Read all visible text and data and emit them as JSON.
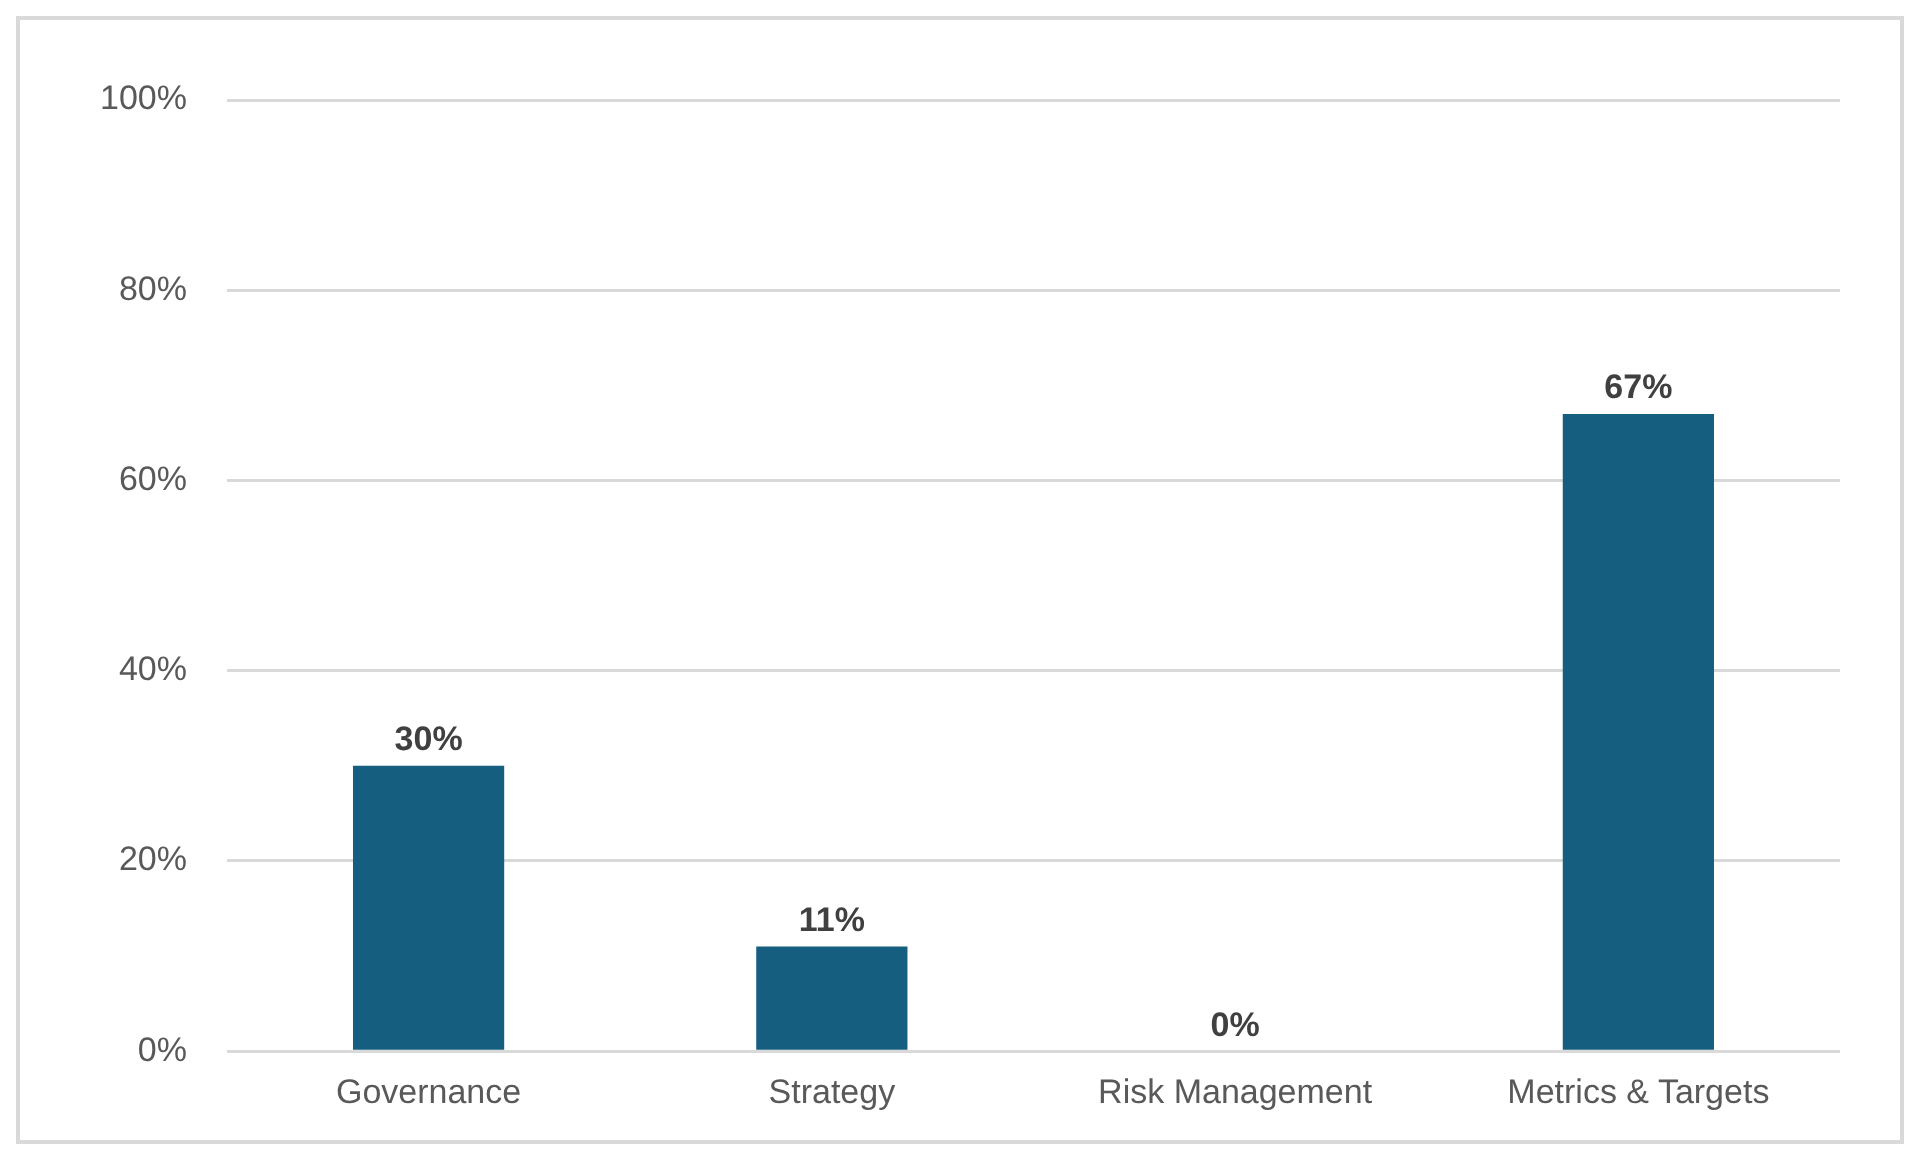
{
  "chart_data": {
    "type": "bar",
    "categories": [
      "Governance",
      "Strategy",
      "Risk Management",
      "Metrics & Targets"
    ],
    "values": [
      30,
      11,
      0,
      67
    ],
    "color": "#155e7f",
    "ylim": [
      0,
      100
    ],
    "yticks": [
      {
        "value": 0,
        "label": "0%"
      },
      {
        "value": 20,
        "label": "20%"
      },
      {
        "value": 40,
        "label": "40%"
      },
      {
        "value": 60,
        "label": "60%"
      },
      {
        "value": 80,
        "label": "80%"
      },
      {
        "value": 100,
        "label": "100%"
      }
    ],
    "grid": "y",
    "data_labels": true,
    "value_labels": [
      "30%",
      "11%",
      "0%",
      "67%"
    ]
  }
}
